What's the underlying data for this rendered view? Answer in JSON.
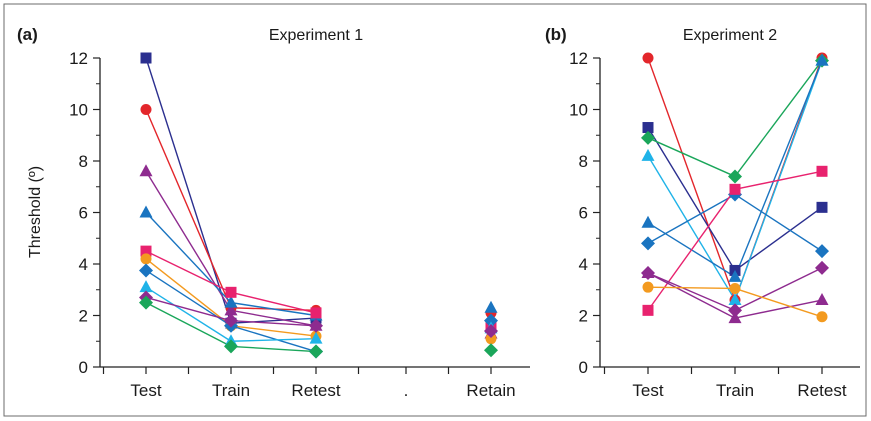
{
  "chart_data": [
    {
      "type": "line",
      "panel_label": "(a)",
      "title": "Experiment 1",
      "ylabel": "Threshold (º)",
      "xlabel": "",
      "categories": [
        "Test",
        "Train",
        "Retest",
        ".",
        "Retain"
      ],
      "yticks": [
        "0",
        "2",
        "4",
        "6",
        "8",
        "10",
        "12"
      ],
      "ylim": [
        0,
        12
      ],
      "grid": false,
      "series": [
        {
          "color": "#2b2f8f",
          "marker": "square",
          "values": [
            12.0,
            1.7,
            1.9,
            null,
            null
          ]
        },
        {
          "color": "#e3262b",
          "marker": "circle",
          "values": [
            10.0,
            2.3,
            2.2,
            null,
            2.1
          ]
        },
        {
          "color": "#8e2b8f",
          "marker": "triangle",
          "values": [
            7.6,
            2.2,
            1.6,
            null,
            1.3
          ]
        },
        {
          "color": "#1a74c0",
          "marker": "triangle",
          "values": [
            6.0,
            2.5,
            2.0,
            null,
            2.3
          ]
        },
        {
          "color": "#e8226e",
          "marker": "square",
          "values": [
            4.5,
            2.9,
            2.1,
            null,
            1.6
          ]
        },
        {
          "color": "#f39a1f",
          "marker": "circle",
          "values": [
            4.2,
            1.6,
            1.2,
            null,
            1.1
          ]
        },
        {
          "color": "#1a74c0",
          "marker": "diamond",
          "values": [
            3.75,
            1.6,
            0.6,
            null,
            1.8
          ]
        },
        {
          "color": "#1fb3e8",
          "marker": "triangle",
          "values": [
            3.1,
            1.0,
            1.1,
            null,
            1.5
          ]
        },
        {
          "color": "#8e2b8f",
          "marker": "diamond",
          "values": [
            2.7,
            1.8,
            1.6,
            null,
            1.4
          ]
        },
        {
          "color": "#1aa65a",
          "marker": "diamond",
          "values": [
            2.5,
            0.8,
            0.6,
            null,
            0.65
          ]
        }
      ]
    },
    {
      "type": "line",
      "panel_label": "(b)",
      "title": "Experiment 2",
      "ylabel": "",
      "xlabel": "",
      "categories": [
        "Test",
        "Train",
        "Retest"
      ],
      "yticks": [
        "0",
        "2",
        "4",
        "6",
        "8",
        "10",
        "12"
      ],
      "ylim": [
        0,
        12
      ],
      "grid": false,
      "series": [
        {
          "color": "#e3262b",
          "marker": "circle",
          "values": [
            12.0,
            2.6,
            12.0
          ]
        },
        {
          "color": "#2b2f8f",
          "marker": "square",
          "values": [
            9.3,
            3.75,
            6.2
          ]
        },
        {
          "color": "#1aa65a",
          "marker": "diamond",
          "values": [
            8.9,
            7.4,
            11.9
          ]
        },
        {
          "color": "#1fb3e8",
          "marker": "triangle",
          "values": [
            8.2,
            2.6,
            11.9
          ]
        },
        {
          "color": "#1a74c0",
          "marker": "triangle",
          "values": [
            5.6,
            3.5,
            11.9
          ]
        },
        {
          "color": "#1a74c0",
          "marker": "diamond",
          "values": [
            4.8,
            6.7,
            4.5
          ]
        },
        {
          "color": "#e8226e",
          "marker": "square",
          "values": [
            2.2,
            6.9,
            7.6
          ]
        },
        {
          "color": "#8e2b8f",
          "marker": "diamond",
          "values": [
            3.65,
            2.2,
            3.85
          ]
        },
        {
          "color": "#8e2b8f",
          "marker": "triangle",
          "values": [
            3.65,
            1.9,
            2.6
          ]
        },
        {
          "color": "#f39a1f",
          "marker": "circle",
          "values": [
            3.1,
            3.05,
            1.95
          ]
        }
      ]
    }
  ]
}
